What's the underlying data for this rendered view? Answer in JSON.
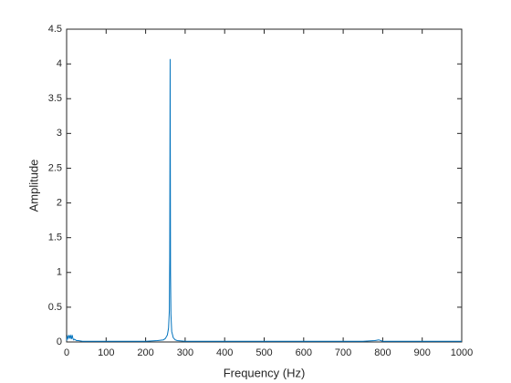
{
  "chart_data": {
    "type": "line",
    "xlabel": "Frequency (Hz)",
    "ylabel": "Amplitude",
    "x": [
      0,
      2,
      4,
      6,
      8,
      10,
      12,
      14,
      16,
      18,
      20,
      25,
      30,
      40,
      50,
      75,
      100,
      150,
      200,
      230,
      245,
      250,
      255,
      258,
      260,
      261,
      262,
      263,
      264,
      266,
      270,
      275,
      280,
      300,
      350,
      400,
      450,
      500,
      550,
      600,
      650,
      700,
      750,
      780,
      790,
      800,
      850,
      900,
      950,
      1000
    ],
    "values": [
      0.02,
      0.08,
      0.05,
      0.1,
      0.06,
      0.09,
      0.04,
      0.1,
      0.05,
      0.03,
      0.04,
      0.02,
      0.02,
      0.01,
      0.01,
      0.01,
      0.01,
      0.01,
      0.01,
      0.02,
      0.03,
      0.05,
      0.1,
      0.2,
      0.45,
      1.2,
      4.07,
      1.0,
      0.4,
      0.15,
      0.06,
      0.03,
      0.02,
      0.01,
      0.01,
      0.01,
      0.01,
      0.01,
      0.01,
      0.01,
      0.01,
      0.01,
      0.01,
      0.02,
      0.03,
      0.01,
      0.01,
      0.01,
      0.01,
      0.01
    ],
    "color": "#0072bd",
    "xlim": [
      0,
      1000
    ],
    "xticks": [
      0,
      100,
      200,
      300,
      400,
      500,
      600,
      700,
      800,
      900,
      1000
    ],
    "ylim": [
      0,
      4.5
    ],
    "yticks": [
      0,
      0.5,
      1,
      1.5,
      2,
      2.5,
      3,
      3.5,
      4,
      4.5
    ],
    "grid": false
  }
}
